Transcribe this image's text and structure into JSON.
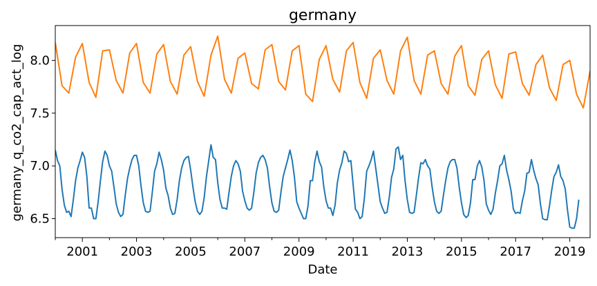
{
  "chart_data": {
    "type": "line",
    "title": "germany",
    "xlabel": "Date",
    "ylabel": "germany_q_co2_cap_act_log",
    "x_range": [
      "2000-01",
      "2019-10"
    ],
    "ylim": [
      6.32,
      8.33
    ],
    "grid": false,
    "legend": "none",
    "x_ticks_major": [
      "2001",
      "2003",
      "2005",
      "2007",
      "2009",
      "2011",
      "2013",
      "2015",
      "2017",
      "2019"
    ],
    "x_ticks_minor": [
      "2000",
      "2002",
      "2004",
      "2006",
      "2008",
      "2010",
      "2012",
      "2014",
      "2016",
      "2018"
    ],
    "y_ticks": [
      6.5,
      7.0,
      7.5,
      8.0
    ],
    "series": [
      {
        "color": "#1f77b4",
        "frequency": "monthly",
        "start": "2000-01",
        "values": [
          7.15,
          7.05,
          7.0,
          6.78,
          6.63,
          6.56,
          6.57,
          6.52,
          6.68,
          6.86,
          6.98,
          7.05,
          7.13,
          7.08,
          6.9,
          6.6,
          6.6,
          6.5,
          6.5,
          6.66,
          6.86,
          7.04,
          7.14,
          7.1,
          7.0,
          6.95,
          6.8,
          6.64,
          6.56,
          6.52,
          6.54,
          6.72,
          6.88,
          6.98,
          7.06,
          7.1,
          7.1,
          7.0,
          6.81,
          6.65,
          6.57,
          6.56,
          6.57,
          6.75,
          6.95,
          7.02,
          7.13,
          7.06,
          6.96,
          6.79,
          6.72,
          6.6,
          6.54,
          6.55,
          6.68,
          6.86,
          6.98,
          7.05,
          7.08,
          7.09,
          6.96,
          6.8,
          6.66,
          6.57,
          6.54,
          6.57,
          6.7,
          6.9,
          7.05,
          7.2,
          7.08,
          7.06,
          6.84,
          6.68,
          6.6,
          6.6,
          6.59,
          6.75,
          6.9,
          7.0,
          7.05,
          7.02,
          6.95,
          6.76,
          6.67,
          6.6,
          6.58,
          6.6,
          6.75,
          6.93,
          7.03,
          7.08,
          7.1,
          7.06,
          6.98,
          6.8,
          6.65,
          6.57,
          6.56,
          6.58,
          6.75,
          6.9,
          6.98,
          7.06,
          7.15,
          7.05,
          6.89,
          6.66,
          6.6,
          6.55,
          6.5,
          6.5,
          6.62,
          6.86,
          6.86,
          7.04,
          7.14,
          7.04,
          6.99,
          6.8,
          6.67,
          6.6,
          6.6,
          6.53,
          6.63,
          6.84,
          6.96,
          7.03,
          7.14,
          7.12,
          7.04,
          7.05,
          6.82,
          6.59,
          6.56,
          6.5,
          6.52,
          6.7,
          6.95,
          7.0,
          7.06,
          7.14,
          6.98,
          6.82,
          6.66,
          6.6,
          6.55,
          6.56,
          6.7,
          6.89,
          6.97,
          7.16,
          7.18,
          7.06,
          7.1,
          6.86,
          6.68,
          6.56,
          6.55,
          6.56,
          6.72,
          6.89,
          7.03,
          7.02,
          7.06,
          7.0,
          6.97,
          6.8,
          6.66,
          6.57,
          6.55,
          6.57,
          6.72,
          6.86,
          6.98,
          7.04,
          7.06,
          7.06,
          6.98,
          6.8,
          6.65,
          6.54,
          6.51,
          6.53,
          6.65,
          6.87,
          6.87,
          7.0,
          7.05,
          6.99,
          6.86,
          6.64,
          6.58,
          6.54,
          6.59,
          6.74,
          6.86,
          7.0,
          7.02,
          7.1,
          6.96,
          6.87,
          6.76,
          6.59,
          6.55,
          6.56,
          6.55,
          6.67,
          6.76,
          6.93,
          6.94,
          7.06,
          6.96,
          6.88,
          6.82,
          6.64,
          6.5,
          6.49,
          6.49,
          6.62,
          6.77,
          6.9,
          6.94,
          7.01,
          6.9,
          6.86,
          6.78,
          6.58,
          6.42,
          6.41,
          6.41,
          6.5,
          6.68
        ]
      },
      {
        "color": "#ff7f0e",
        "frequency": "quarterly",
        "start": "2000-01",
        "values": [
          8.17,
          7.76,
          7.69,
          8.03,
          8.16,
          7.79,
          7.65,
          8.09,
          8.1,
          7.81,
          7.69,
          8.07,
          8.16,
          7.79,
          7.69,
          8.06,
          8.15,
          7.8,
          7.68,
          8.05,
          8.13,
          7.8,
          7.66,
          8.05,
          8.23,
          7.82,
          7.69,
          8.02,
          8.07,
          7.78,
          7.73,
          8.1,
          8.15,
          7.8,
          7.72,
          8.09,
          8.14,
          7.68,
          7.61,
          8.01,
          8.14,
          7.82,
          7.7,
          8.09,
          8.17,
          7.79,
          7.64,
          8.02,
          8.1,
          7.81,
          7.68,
          8.09,
          8.22,
          7.81,
          7.68,
          8.05,
          8.09,
          7.78,
          7.68,
          8.04,
          8.14,
          7.76,
          7.67,
          8.01,
          8.09,
          7.77,
          7.64,
          8.06,
          8.08,
          7.78,
          7.67,
          7.96,
          8.05,
          7.74,
          7.62,
          7.96,
          8.0,
          7.68,
          7.55,
          7.9
        ]
      }
    ]
  }
}
